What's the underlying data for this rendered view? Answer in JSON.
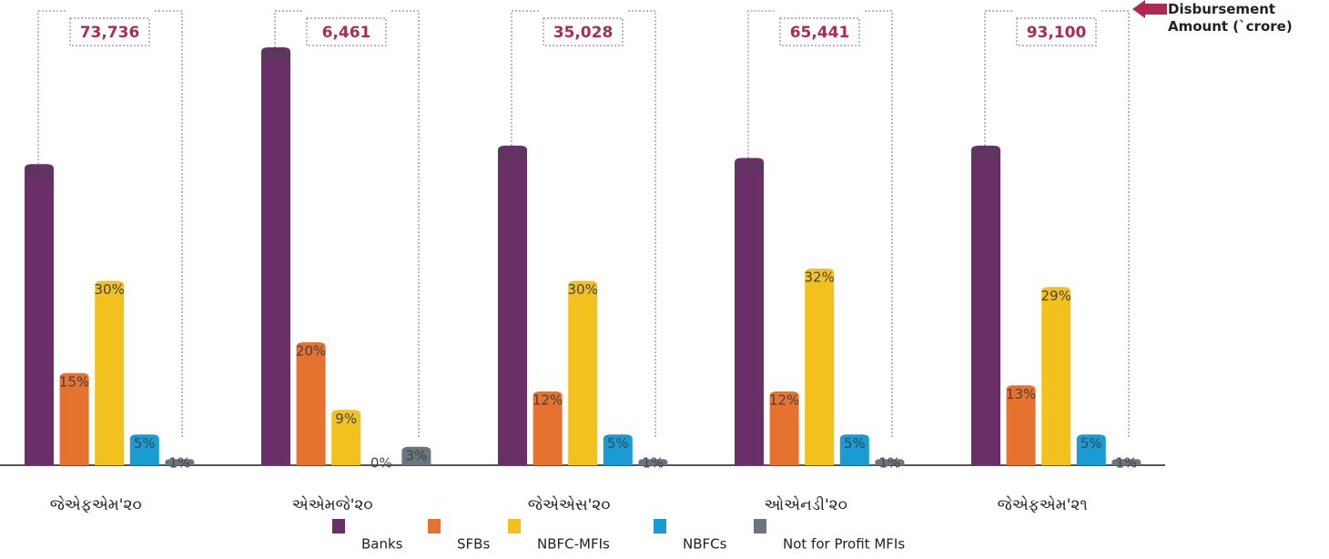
{
  "chart_data": {
    "type": "bar",
    "categories": [
      "જેએફએમ'૨૦",
      "એએમજે'૨૦",
      "જેએએસ'૨૦",
      "ઓએનડી'૨૦",
      "જેએફએમ'૨૧"
    ],
    "series": [
      {
        "name": "Banks",
        "color": "#6a2f69",
        "values": [
          49,
          68,
          52,
          50,
          52
        ],
        "value_labels": [
          "49%",
          "68%",
          "52%",
          "50%",
          "52%"
        ]
      },
      {
        "name": "SFBs",
        "color": "#e5722f",
        "values": [
          15,
          20,
          12,
          12,
          13
        ],
        "value_labels": [
          "15%",
          "20%",
          "12%",
          "12%",
          "13%"
        ]
      },
      {
        "name": "NBFC-MFIs",
        "color": "#f3c11d",
        "values": [
          30,
          9,
          30,
          32,
          29
        ],
        "value_labels": [
          "30%",
          "9%",
          "30%",
          "32%",
          "29%"
        ]
      },
      {
        "name": "NBFCs",
        "color": "#1a9bd2",
        "values": [
          5,
          0,
          5,
          5,
          5
        ],
        "value_labels": [
          "5%",
          "0%",
          "5%",
          "5%",
          "5%"
        ]
      },
      {
        "name": "Not for Profit MFIs",
        "color": "#6b757e",
        "values": [
          1,
          3,
          1,
          1,
          1
        ],
        "value_labels": [
          "1%",
          "3%",
          "1%",
          "1%",
          "1%"
        ]
      }
    ],
    "disbursement": {
      "name": "Disbursement Amount (`crore)",
      "color": "#b02a4f",
      "values": [
        73736,
        6461,
        35028,
        65441,
        93100
      ],
      "value_labels": [
        "73,736",
        "6,461",
        "35,028",
        "65,441",
        "93,100"
      ]
    }
  }
}
